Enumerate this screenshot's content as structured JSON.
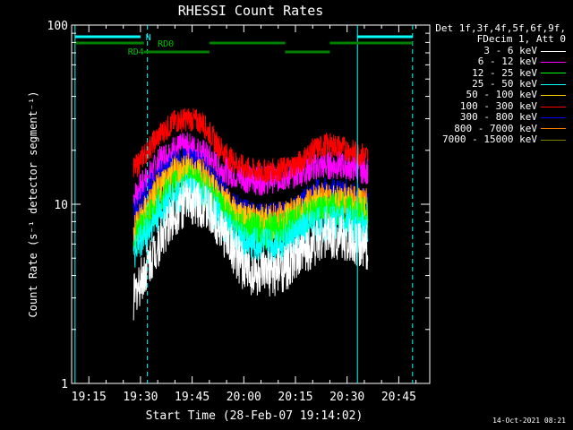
{
  "chart_data": {
    "type": "line",
    "title": "RHESSI Count Rates",
    "xlabel": "Start Time (28-Feb-07 19:14:02)",
    "ylabel": "Count Rate (s⁻¹ detector segment⁻¹)",
    "yscale": "log",
    "ylim": [
      1,
      100
    ],
    "xlim": [
      "19:10",
      "20:54"
    ],
    "x_ticks": [
      "19:15",
      "19:30",
      "19:45",
      "20:00",
      "20:15",
      "20:30",
      "20:45"
    ],
    "y_ticks": [
      "1",
      "10",
      "100"
    ],
    "legend_header": [
      "Det 1f,3f,4f,5f,6f,9f,",
      "FDecim 1, Att 0"
    ],
    "legend_position": "right",
    "x": [
      "19:28",
      "19:32",
      "19:36",
      "19:40",
      "19:44",
      "19:48",
      "19:52",
      "19:56",
      "20:00",
      "20:04",
      "20:08",
      "20:12",
      "20:16",
      "20:20",
      "20:24",
      "20:28",
      "20:32",
      "20:36"
    ],
    "series": [
      {
        "name": "3 - 6 keV",
        "color": "#ffffff",
        "values": [
          3.0,
          4.5,
          6.5,
          9.0,
          10.5,
          10.0,
          8.0,
          6.0,
          4.4,
          4.0,
          4.1,
          4.4,
          5.0,
          6.0,
          6.8,
          6.5,
          6.0,
          5.8
        ]
      },
      {
        "name": "6 - 12 keV",
        "color": "#ff00ff",
        "values": [
          11.0,
          14.0,
          18.0,
          20.5,
          21.0,
          19.5,
          16.5,
          15.0,
          14.0,
          13.5,
          13.8,
          14.2,
          15.0,
          16.0,
          16.5,
          16.5,
          16.0,
          15.5
        ]
      },
      {
        "name": "12 - 25 keV",
        "color": "#00ff00",
        "values": [
          6.3,
          8.0,
          10.5,
          12.5,
          13.2,
          12.5,
          10.0,
          8.3,
          7.3,
          7.0,
          7.1,
          7.3,
          8.0,
          8.8,
          9.2,
          9.2,
          8.9,
          8.6
        ]
      },
      {
        "name": "25 - 50 keV",
        "color": "#00ffff",
        "values": [
          5.5,
          7.0,
          9.3,
          11.0,
          11.5,
          10.8,
          8.7,
          7.0,
          6.0,
          5.8,
          5.9,
          6.2,
          6.8,
          7.5,
          7.9,
          7.9,
          7.6,
          7.3
        ]
      },
      {
        "name": "50 - 100 keV",
        "color": "#ffc800",
        "values": [
          6.8,
          9.0,
          12.0,
          14.5,
          15.0,
          14.0,
          11.0,
          9.2,
          8.1,
          7.7,
          7.8,
          8.1,
          8.7,
          9.8,
          10.3,
          10.2,
          9.8,
          9.5
        ]
      },
      {
        "name": "100 - 300 keV",
        "color": "#ff0000",
        "values": [
          15.5,
          20.0,
          25.0,
          29.0,
          30.0,
          28.5,
          22.0,
          18.0,
          16.0,
          15.2,
          15.4,
          15.8,
          17.0,
          20.0,
          21.5,
          21.0,
          19.5,
          18.5
        ]
      },
      {
        "name": "300 - 800 keV",
        "color": "#0000ff",
        "values": [
          8.8,
          11.5,
          14.5,
          16.5,
          17.0,
          16.0,
          12.5,
          10.0,
          8.8,
          8.3,
          8.4,
          8.6,
          9.5,
          11.0,
          11.7,
          11.5,
          10.8,
          10.4
        ]
      },
      {
        "name": "800 - 7000 keV",
        "color": "#ff8000",
        "values": [
          7.2,
          9.5,
          12.8,
          15.0,
          15.5,
          14.5,
          11.3,
          9.5,
          8.4,
          8.0,
          8.1,
          8.4,
          9.0,
          10.2,
          10.7,
          10.6,
          10.2,
          9.9
        ]
      },
      {
        "name": "7000 - 15000 keV",
        "color": "#808000",
        "values": [
          null,
          null,
          null,
          null,
          null,
          null,
          null,
          null,
          null,
          null,
          null,
          null,
          null,
          null,
          null,
          null,
          null,
          null
        ]
      }
    ],
    "annotations": {
      "labels": [
        "N",
        "RD0",
        "RD4"
      ],
      "cyan_bar_segments": [
        [
          "19:11",
          "19:30"
        ],
        [
          "20:33",
          "20:49"
        ]
      ],
      "green_bar_high": [
        [
          "19:11",
          "19:31"
        ],
        [
          "19:50",
          "20:12"
        ],
        [
          "20:25",
          "20:49"
        ]
      ],
      "green_bar_low": [
        [
          "19:31",
          "19:50"
        ],
        [
          "20:12",
          "20:25"
        ]
      ],
      "solid_vlines": [
        "19:11",
        "20:33"
      ],
      "dashed_vlines": [
        "19:32",
        "20:49"
      ]
    }
  },
  "footer": {
    "timestamp": "14-Oct-2021 08:21"
  }
}
